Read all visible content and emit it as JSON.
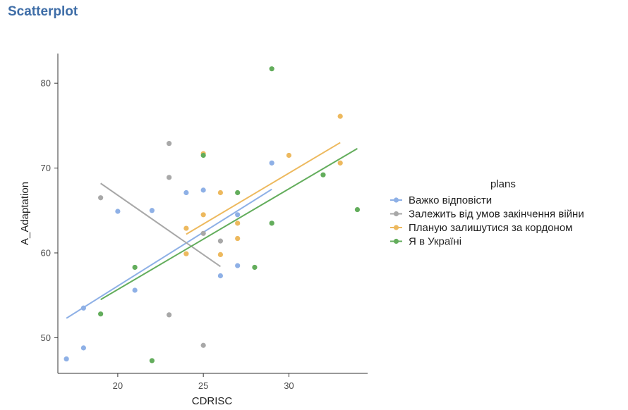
{
  "page": {
    "title": "Scatterplot"
  },
  "chart_data": {
    "type": "scatter",
    "title": "",
    "xlabel": "CDRISC",
    "ylabel": "A_Adaptation",
    "xlim": [
      16.5,
      34.6
    ],
    "ylim": [
      45.8,
      83.5
    ],
    "xticks": [
      20,
      25,
      30
    ],
    "yticks": [
      50,
      60,
      70,
      80
    ],
    "grid": false,
    "legend": {
      "title": "plans",
      "position": "right"
    },
    "series": [
      {
        "name": "Важко відповісти",
        "color": "#8eb0e6",
        "points": [
          [
            17,
            47.5
          ],
          [
            18,
            53.5
          ],
          [
            18,
            48.8
          ],
          [
            20,
            64.9
          ],
          [
            21,
            55.6
          ],
          [
            22,
            65.0
          ],
          [
            24,
            67.1
          ],
          [
            25,
            67.4
          ],
          [
            26,
            57.3
          ],
          [
            27,
            58.5
          ],
          [
            27,
            64.5
          ],
          [
            29,
            70.6
          ]
        ],
        "trend": [
          [
            17,
            52.3
          ],
          [
            29,
            67.5
          ]
        ]
      },
      {
        "name": "Залежить від умов закінчення війни",
        "color": "#a8a8a8",
        "points": [
          [
            19,
            66.5
          ],
          [
            23,
            72.9
          ],
          [
            23,
            68.9
          ],
          [
            23,
            52.7
          ],
          [
            25,
            62.3
          ],
          [
            25,
            49.1
          ],
          [
            26,
            61.4
          ]
        ],
        "trend": [
          [
            19,
            68.2
          ],
          [
            26,
            58.4
          ]
        ]
      },
      {
        "name": "Планую залишутися за кордоном",
        "color": "#edb95e",
        "points": [
          [
            24,
            62.9
          ],
          [
            24,
            59.9
          ],
          [
            25,
            71.7
          ],
          [
            25,
            64.5
          ],
          [
            26,
            67.1
          ],
          [
            26,
            59.8
          ],
          [
            27,
            63.5
          ],
          [
            27,
            61.7
          ],
          [
            30,
            71.5
          ],
          [
            33,
            76.1
          ],
          [
            33,
            70.6
          ]
        ],
        "trend": [
          [
            24,
            62.2
          ],
          [
            33,
            73.0
          ]
        ]
      },
      {
        "name": "Я в Україні",
        "color": "#63ad5c",
        "points": [
          [
            19,
            52.8
          ],
          [
            21,
            58.3
          ],
          [
            22,
            47.3
          ],
          [
            25,
            71.5
          ],
          [
            27,
            67.1
          ],
          [
            28,
            58.3
          ],
          [
            29,
            81.7
          ],
          [
            29,
            63.5
          ],
          [
            32,
            69.2
          ],
          [
            34,
            65.1
          ]
        ],
        "trend": [
          [
            19,
            54.5
          ],
          [
            34,
            72.3
          ]
        ]
      }
    ]
  }
}
